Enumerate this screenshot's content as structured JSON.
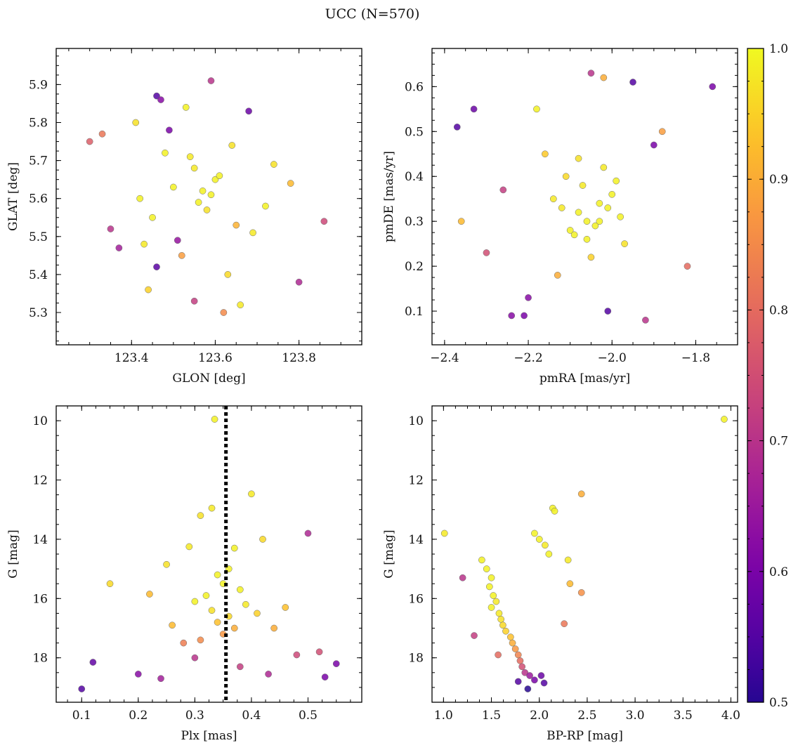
{
  "figure": {
    "title": "UCC (N=570)"
  },
  "colorbar": {
    "colormap": "plasma",
    "range": [
      0.5,
      1.0
    ],
    "ticks": [
      0.5,
      0.6,
      0.7,
      0.8,
      0.9,
      1.0
    ],
    "tick_labels": [
      "0.5",
      "0.6",
      "0.7",
      "0.8",
      "0.9",
      "1.0"
    ]
  },
  "chart_data": [
    {
      "type": "scatter",
      "xlabel": "GLON [deg]",
      "ylabel": "GLAT [deg]",
      "xlim": [
        123.22,
        123.95
      ],
      "ylim": [
        5.215,
        5.995
      ],
      "xticks": [
        123.4,
        123.6,
        123.8
      ],
      "xtick_labels": [
        "123.4",
        "123.6",
        "123.8"
      ],
      "yticks": [
        5.3,
        5.4,
        5.5,
        5.6,
        5.7,
        5.8,
        5.9
      ],
      "ytick_labels": [
        "5.3",
        "5.4",
        "5.5",
        "5.6",
        "5.7",
        "5.8",
        "5.9"
      ],
      "color_by": "membership probability",
      "x": [
        123.3,
        123.46,
        123.47,
        123.44,
        123.59,
        123.68,
        123.55,
        123.66,
        123.8,
        123.86,
        123.53,
        123.62,
        123.41,
        123.49,
        123.37,
        123.57,
        123.69,
        123.74,
        123.45,
        123.6,
        123.33,
        123.63,
        123.55,
        123.48,
        123.52,
        123.42,
        123.58,
        123.61,
        123.65,
        123.5,
        123.56,
        123.64,
        123.51,
        123.59,
        123.54,
        123.46,
        123.72,
        123.78,
        123.35,
        123.43
      ],
      "y": [
        5.75,
        5.87,
        5.86,
        5.36,
        5.91,
        5.83,
        5.33,
        5.32,
        5.38,
        5.54,
        5.84,
        5.3,
        5.8,
        5.78,
        5.47,
        5.62,
        5.51,
        5.69,
        5.55,
        5.65,
        5.77,
        5.4,
        5.68,
        5.72,
        5.45,
        5.6,
        5.57,
        5.66,
        5.53,
        5.63,
        5.59,
        5.74,
        5.49,
        5.61,
        5.71,
        5.42,
        5.58,
        5.64,
        5.52,
        5.48
      ],
      "c": [
        0.78,
        0.55,
        0.62,
        0.95,
        0.7,
        0.58,
        0.72,
        0.98,
        0.68,
        0.74,
        0.99,
        0.85,
        0.97,
        0.6,
        0.66,
        0.99,
        0.98,
        0.97,
        0.99,
        0.99,
        0.82,
        0.96,
        0.98,
        0.99,
        0.88,
        0.99,
        0.97,
        0.99,
        0.91,
        0.99,
        0.99,
        0.97,
        0.64,
        0.99,
        0.98,
        0.56,
        0.99,
        0.92,
        0.7,
        0.98
      ]
    },
    {
      "type": "scatter",
      "xlabel": "pmRA [mas/yr]",
      "ylabel": "pmDE [mas/yr]",
      "xlim": [
        -2.43,
        -1.7
      ],
      "ylim": [
        0.025,
        0.685
      ],
      "xticks": [
        -2.4,
        -2.2,
        -2.0,
        -1.8
      ],
      "xtick_labels": [
        "−2.4",
        "−2.2",
        "−2.0",
        "−1.8"
      ],
      "yticks": [
        0.1,
        0.2,
        0.3,
        0.4,
        0.5,
        0.6
      ],
      "ytick_labels": [
        "0.1",
        "0.2",
        "0.3",
        "0.4",
        "0.5",
        "0.6"
      ],
      "color_by": "membership probability",
      "x": [
        -2.37,
        -2.33,
        -1.76,
        -2.05,
        -2.02,
        -1.95,
        -2.24,
        -2.21,
        -1.92,
        -2.01,
        -2.36,
        -2.3,
        -2.14,
        -2.06,
        -2.08,
        -2.1,
        -2.03,
        -1.98,
        -2.12,
        -2.0,
        -2.04,
        -2.07,
        -2.09,
        -1.97,
        -2.11,
        -2.02,
        -2.05,
        -2.16,
        -1.88,
        -1.82,
        -2.26,
        -2.2,
        -2.18,
        -1.9,
        -2.13,
        -2.06,
        -1.99,
        -2.08,
        -2.03,
        -2.01
      ],
      "y": [
        0.51,
        0.55,
        0.6,
        0.63,
        0.62,
        0.61,
        0.09,
        0.09,
        0.08,
        0.1,
        0.3,
        0.23,
        0.35,
        0.3,
        0.32,
        0.28,
        0.34,
        0.31,
        0.33,
        0.36,
        0.29,
        0.38,
        0.27,
        0.25,
        0.4,
        0.42,
        0.22,
        0.45,
        0.5,
        0.2,
        0.37,
        0.13,
        0.55,
        0.47,
        0.18,
        0.26,
        0.39,
        0.44,
        0.3,
        0.33
      ],
      "c": [
        0.55,
        0.58,
        0.6,
        0.7,
        0.9,
        0.55,
        0.62,
        0.6,
        0.7,
        0.55,
        0.92,
        0.75,
        0.98,
        0.99,
        0.99,
        0.99,
        0.99,
        0.99,
        0.98,
        0.99,
        0.99,
        0.98,
        0.99,
        0.97,
        0.96,
        0.98,
        0.95,
        0.94,
        0.88,
        0.8,
        0.72,
        0.62,
        0.99,
        0.6,
        0.9,
        0.99,
        0.99,
        0.97,
        0.99,
        0.99
      ]
    },
    {
      "type": "scatter",
      "xlabel": "Plx [mas]",
      "ylabel": "G [mag]",
      "xlim": [
        0.055,
        0.595
      ],
      "ylim": [
        19.5,
        9.5
      ],
      "xticks": [
        0.1,
        0.2,
        0.3,
        0.4,
        0.5
      ],
      "xtick_labels": [
        "0.1",
        "0.2",
        "0.3",
        "0.4",
        "0.5"
      ],
      "yticks": [
        10,
        12,
        14,
        16,
        18
      ],
      "ytick_labels": [
        "10",
        "12",
        "14",
        "16",
        "18"
      ],
      "vline": 0.355,
      "color_by": "membership probability",
      "x": [
        0.335,
        0.4,
        0.33,
        0.31,
        0.29,
        0.42,
        0.37,
        0.36,
        0.34,
        0.35,
        0.38,
        0.32,
        0.3,
        0.39,
        0.33,
        0.36,
        0.34,
        0.37,
        0.35,
        0.31,
        0.28,
        0.26,
        0.25,
        0.41,
        0.44,
        0.15,
        0.22,
        0.46,
        0.5,
        0.52,
        0.55,
        0.1,
        0.12,
        0.2,
        0.24,
        0.3,
        0.38,
        0.43,
        0.48,
        0.53
      ],
      "y": [
        9.95,
        12.47,
        12.95,
        13.2,
        14.25,
        14.0,
        14.3,
        15.0,
        15.2,
        15.5,
        15.7,
        15.9,
        16.1,
        16.2,
        16.4,
        16.6,
        16.8,
        17.0,
        17.2,
        17.4,
        17.5,
        16.9,
        14.85,
        16.5,
        17.0,
        15.5,
        15.85,
        16.3,
        13.8,
        17.8,
        18.2,
        19.05,
        18.15,
        18.55,
        18.7,
        18.0,
        18.3,
        18.55,
        17.9,
        18.65
      ],
      "c": [
        0.99,
        0.98,
        0.98,
        0.97,
        0.98,
        0.96,
        0.99,
        0.99,
        0.99,
        0.99,
        0.99,
        0.99,
        0.99,
        0.98,
        0.97,
        0.96,
        0.93,
        0.9,
        0.87,
        0.85,
        0.83,
        0.92,
        0.97,
        0.95,
        0.9,
        0.96,
        0.92,
        0.93,
        0.68,
        0.75,
        0.6,
        0.55,
        0.57,
        0.62,
        0.66,
        0.7,
        0.72,
        0.68,
        0.74,
        0.6
      ]
    },
    {
      "type": "scatter",
      "xlabel": "BP-RP [mag]",
      "ylabel": "G [mag]",
      "xlim": [
        0.88,
        4.07
      ],
      "ylim": [
        19.5,
        9.5
      ],
      "xticks": [
        1.0,
        1.5,
        2.0,
        2.5,
        3.0,
        3.5,
        4.0
      ],
      "xtick_labels": [
        "1.0",
        "1.5",
        "2.0",
        "2.5",
        "3.0",
        "3.5",
        "4.0"
      ],
      "yticks": [
        10,
        12,
        14,
        16,
        18
      ],
      "ytick_labels": [
        "10",
        "12",
        "14",
        "16",
        "18"
      ],
      "color_by": "membership probability",
      "x": [
        3.93,
        2.44,
        2.14,
        2.16,
        1.95,
        2.0,
        2.06,
        2.1,
        2.3,
        2.32,
        1.01,
        1.4,
        1.45,
        1.5,
        1.48,
        1.52,
        1.55,
        1.5,
        1.58,
        1.6,
        1.62,
        1.65,
        1.7,
        1.72,
        1.75,
        1.78,
        1.8,
        1.82,
        1.85,
        1.9,
        1.95,
        2.02,
        2.44,
        2.26,
        1.2,
        1.32,
        1.57,
        1.78,
        1.88,
        2.05
      ],
      "y": [
        9.95,
        12.47,
        12.95,
        13.05,
        13.8,
        14.0,
        14.2,
        14.5,
        14.7,
        15.5,
        13.8,
        14.7,
        15.0,
        15.3,
        15.6,
        15.9,
        16.1,
        16.3,
        16.5,
        16.7,
        16.9,
        17.1,
        17.3,
        17.5,
        17.7,
        17.9,
        18.1,
        18.3,
        18.5,
        18.6,
        18.75,
        18.6,
        15.8,
        16.85,
        15.3,
        17.25,
        17.9,
        18.8,
        19.05,
        18.85
      ],
      "c": [
        0.99,
        0.9,
        0.99,
        0.99,
        0.99,
        0.99,
        0.98,
        0.99,
        0.98,
        0.92,
        0.98,
        0.99,
        0.99,
        0.99,
        0.99,
        0.99,
        0.98,
        0.99,
        0.98,
        0.97,
        0.96,
        0.95,
        0.93,
        0.9,
        0.87,
        0.84,
        0.8,
        0.75,
        0.7,
        0.65,
        0.6,
        0.58,
        0.86,
        0.82,
        0.7,
        0.72,
        0.8,
        0.55,
        0.5,
        0.55
      ]
    }
  ]
}
